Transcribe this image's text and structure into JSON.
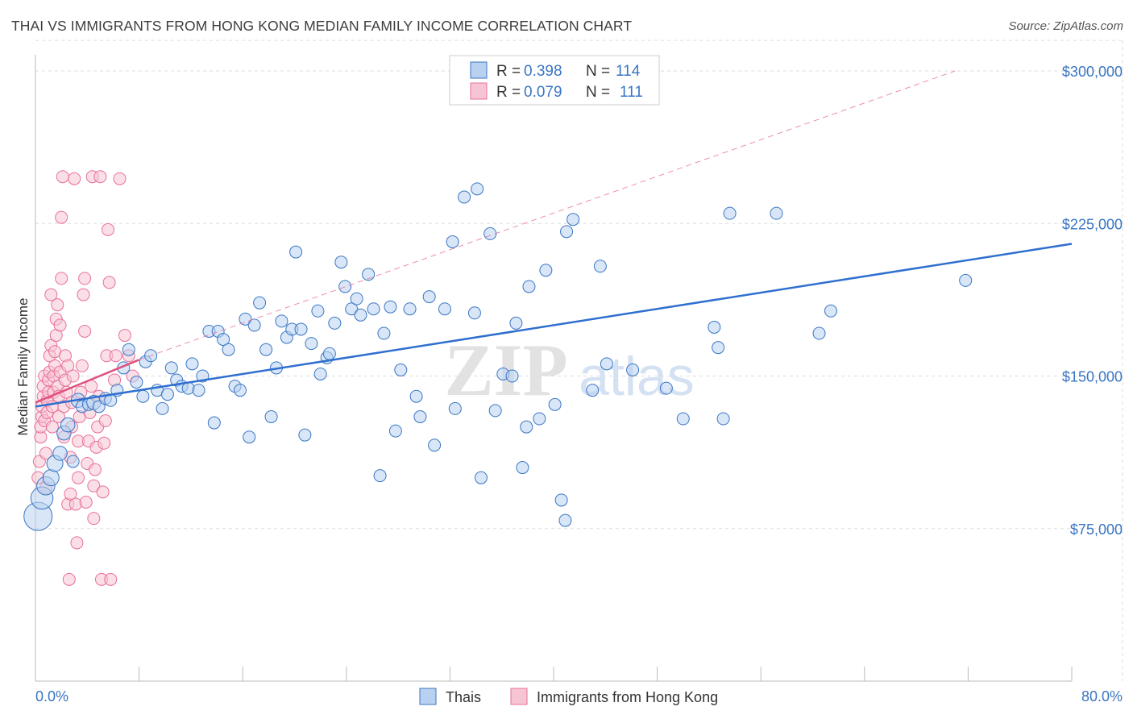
{
  "title": "THAI VS IMMIGRANTS FROM HONG KONG MEDIAN FAMILY INCOME CORRELATION CHART",
  "source": "Source: ZipAtlas.com",
  "watermark": {
    "zip": "ZIP",
    "atlas": "atlas"
  },
  "colors": {
    "blue": "#3a76c4",
    "blue_fill": "#b8d1f0",
    "blue_line": "#2f6fcf",
    "pink": "#e8709a",
    "pink_fill": "#f7c4d4",
    "pink_line": "#e0507e",
    "grid": "#dddddd"
  },
  "legend": {
    "rows": [
      {
        "r_label": "R = ",
        "r_value": "0.398",
        "n_label": "N = ",
        "n_value": "114"
      },
      {
        "r_label": "R = ",
        "r_value": "0.079",
        "n_label": "N = ",
        "n_value": "111"
      }
    ]
  },
  "bottom_legend": [
    "Thais",
    "Immigrants from Hong Kong"
  ],
  "chart_data": {
    "type": "scatter",
    "title": "THAI VS IMMIGRANTS FROM HONG KONG MEDIAN FAMILY INCOME CORRELATION CHART",
    "xlabel": "",
    "ylabel": "Median Family Income",
    "xlim": [
      0,
      80
    ],
    "ylim": [
      0,
      315000
    ],
    "x_tick_labels": [
      "0.0%",
      "80.0%"
    ],
    "y_ticks": [
      75000,
      150000,
      225000,
      300000
    ],
    "y_tick_labels": [
      "$75,000",
      "$150,000",
      "$225,000",
      "$300,000"
    ],
    "grid": true,
    "series": [
      {
        "name": "Thais",
        "r": 0.398,
        "n": 114,
        "trend": {
          "x": [
            0,
            80
          ],
          "y": [
            135000,
            215000
          ],
          "style": "solid"
        },
        "points": [
          [
            0.2,
            81000,
            14
          ],
          [
            0.5,
            90000,
            11
          ],
          [
            0.8,
            96000,
            9
          ],
          [
            1.2,
            100000,
            8
          ],
          [
            1.5,
            107000,
            8
          ],
          [
            1.9,
            112000,
            7
          ],
          [
            2.2,
            122000,
            7
          ],
          [
            2.5,
            126000,
            7
          ],
          [
            2.9,
            108000,
            6
          ],
          [
            3.3,
            138000,
            7
          ],
          [
            3.6,
            135000,
            6
          ],
          [
            4.1,
            136000,
            6
          ],
          [
            4.5,
            137000,
            7
          ],
          [
            4.9,
            135000,
            6
          ],
          [
            5.4,
            139000,
            6
          ],
          [
            5.8,
            138000,
            6
          ],
          [
            6.3,
            143000,
            6
          ],
          [
            6.8,
            154000,
            6
          ],
          [
            7.2,
            163000,
            6
          ],
          [
            7.8,
            147000,
            6
          ],
          [
            8.3,
            140000,
            6
          ],
          [
            8.5,
            157000,
            6
          ],
          [
            8.9,
            160000,
            6
          ],
          [
            9.4,
            143000,
            6
          ],
          [
            9.8,
            134000,
            6
          ],
          [
            10.2,
            141000,
            6
          ],
          [
            10.5,
            154000,
            6
          ],
          [
            10.9,
            148000,
            6
          ],
          [
            11.3,
            145000,
            6
          ],
          [
            11.8,
            144000,
            6
          ],
          [
            12.1,
            156000,
            6
          ],
          [
            12.6,
            143000,
            6
          ],
          [
            12.9,
            150000,
            6
          ],
          [
            13.4,
            172000,
            6
          ],
          [
            13.8,
            127000,
            6
          ],
          [
            14.1,
            172000,
            6
          ],
          [
            14.5,
            168000,
            6
          ],
          [
            14.9,
            163000,
            6
          ],
          [
            15.4,
            145000,
            6
          ],
          [
            15.8,
            143000,
            6
          ],
          [
            16.2,
            178000,
            6
          ],
          [
            16.5,
            120000,
            6
          ],
          [
            16.9,
            175000,
            6
          ],
          [
            17.3,
            186000,
            6
          ],
          [
            17.8,
            163000,
            6
          ],
          [
            18.2,
            130000,
            6
          ],
          [
            18.6,
            154000,
            6
          ],
          [
            19.0,
            177000,
            6
          ],
          [
            19.4,
            169000,
            6
          ],
          [
            19.8,
            173000,
            6
          ],
          [
            20.1,
            211000,
            6
          ],
          [
            20.5,
            173000,
            6
          ],
          [
            20.8,
            121000,
            6
          ],
          [
            21.3,
            166000,
            6
          ],
          [
            21.8,
            182000,
            6
          ],
          [
            22.0,
            151000,
            6
          ],
          [
            22.5,
            159000,
            6
          ],
          [
            22.7,
            161000,
            6
          ],
          [
            23.1,
            176000,
            6
          ],
          [
            23.6,
            206000,
            6
          ],
          [
            23.9,
            194000,
            6
          ],
          [
            24.4,
            183000,
            6
          ],
          [
            24.8,
            188000,
            6
          ],
          [
            25.1,
            180000,
            6
          ],
          [
            25.7,
            200000,
            6
          ],
          [
            26.1,
            183000,
            6
          ],
          [
            26.6,
            101000,
            6
          ],
          [
            26.9,
            171000,
            6
          ],
          [
            27.4,
            184000,
            6
          ],
          [
            27.8,
            123000,
            6
          ],
          [
            28.2,
            153000,
            6
          ],
          [
            28.9,
            183000,
            6
          ],
          [
            29.4,
            140000,
            6
          ],
          [
            29.7,
            130000,
            6
          ],
          [
            30.4,
            189000,
            6
          ],
          [
            30.8,
            116000,
            6
          ],
          [
            31.6,
            183000,
            6
          ],
          [
            32.2,
            216000,
            6
          ],
          [
            32.4,
            134000,
            6
          ],
          [
            33.1,
            238000,
            6
          ],
          [
            33.9,
            181000,
            6
          ],
          [
            34.1,
            242000,
            6
          ],
          [
            34.4,
            100000,
            6
          ],
          [
            35.1,
            220000,
            6
          ],
          [
            35.5,
            133000,
            6
          ],
          [
            36.1,
            151000,
            6
          ],
          [
            36.8,
            150000,
            6
          ],
          [
            37.1,
            176000,
            6
          ],
          [
            37.6,
            105000,
            6
          ],
          [
            37.9,
            125000,
            6
          ],
          [
            38.1,
            194000,
            6
          ],
          [
            38.9,
            129000,
            6
          ],
          [
            39.4,
            202000,
            6
          ],
          [
            40.1,
            136000,
            6
          ],
          [
            40.6,
            89000,
            6
          ],
          [
            40.9,
            79000,
            6
          ],
          [
            41.0,
            221000,
            6
          ],
          [
            41.5,
            227000,
            6
          ],
          [
            43.0,
            143000,
            6
          ],
          [
            43.6,
            204000,
            6
          ],
          [
            44.1,
            156000,
            6
          ],
          [
            46.1,
            153000,
            6
          ],
          [
            48.7,
            144000,
            6
          ],
          [
            50.0,
            129000,
            6
          ],
          [
            52.4,
            174000,
            6
          ],
          [
            52.7,
            164000,
            6
          ],
          [
            53.1,
            129000,
            6
          ],
          [
            53.6,
            230000,
            6
          ],
          [
            57.2,
            230000,
            6
          ],
          [
            60.5,
            171000,
            6
          ],
          [
            61.4,
            182000,
            6
          ],
          [
            71.8,
            197000,
            6
          ]
        ]
      },
      {
        "name": "Immigrants from Hong Kong",
        "r": 0.079,
        "n": 111,
        "trend": {
          "x": [
            0,
            8
          ],
          "y": [
            137000,
            158000
          ],
          "style": "solid"
        },
        "trend_extended": {
          "x": [
            8,
            71
          ],
          "y": [
            158000,
            300000
          ],
          "style": "dashed"
        },
        "points": [
          [
            0.2,
            100000,
            6
          ],
          [
            0.3,
            108000,
            6
          ],
          [
            0.4,
            120000,
            6
          ],
          [
            0.4,
            125000,
            6
          ],
          [
            0.5,
            130000,
            6
          ],
          [
            0.5,
            135000,
            6
          ],
          [
            0.6,
            140000,
            6
          ],
          [
            0.6,
            145000,
            6
          ],
          [
            0.7,
            150000,
            6
          ],
          [
            0.7,
            128000,
            6
          ],
          [
            0.8,
            95000,
            6
          ],
          [
            0.8,
            112000,
            6
          ],
          [
            0.9,
            132000,
            6
          ],
          [
            0.9,
            138000,
            6
          ],
          [
            1.0,
            142000,
            6
          ],
          [
            1.0,
            148000,
            6
          ],
          [
            1.1,
            152000,
            6
          ],
          [
            1.1,
            160000,
            6
          ],
          [
            1.2,
            165000,
            6
          ],
          [
            1.2,
            190000,
            6
          ],
          [
            1.3,
            125000,
            6
          ],
          [
            1.3,
            135000,
            6
          ],
          [
            1.4,
            142000,
            6
          ],
          [
            1.4,
            150000,
            6
          ],
          [
            1.5,
            155000,
            6
          ],
          [
            1.5,
            162000,
            6
          ],
          [
            1.6,
            170000,
            6
          ],
          [
            1.6,
            178000,
            6
          ],
          [
            1.7,
            185000,
            6
          ],
          [
            1.7,
            145000,
            6
          ],
          [
            1.8,
            130000,
            6
          ],
          [
            1.8,
            140000,
            6
          ],
          [
            1.9,
            152000,
            6
          ],
          [
            1.9,
            175000,
            6
          ],
          [
            2.0,
            198000,
            6
          ],
          [
            2.0,
            228000,
            6
          ],
          [
            2.1,
            248000,
            6
          ],
          [
            2.2,
            120000,
            6
          ],
          [
            2.2,
            135000,
            6
          ],
          [
            2.3,
            148000,
            6
          ],
          [
            2.3,
            160000,
            6
          ],
          [
            2.4,
            142000,
            6
          ],
          [
            2.5,
            155000,
            6
          ],
          [
            2.5,
            87000,
            6
          ],
          [
            2.6,
            50000,
            6
          ],
          [
            2.7,
            92000,
            6
          ],
          [
            2.7,
            110000,
            6
          ],
          [
            2.8,
            125000,
            6
          ],
          [
            2.8,
            137000,
            6
          ],
          [
            2.9,
            150000,
            6
          ],
          [
            3.0,
            247000,
            6
          ],
          [
            3.1,
            87000,
            6
          ],
          [
            3.2,
            68000,
            6
          ],
          [
            3.3,
            100000,
            6
          ],
          [
            3.3,
            118000,
            6
          ],
          [
            3.4,
            130000,
            6
          ],
          [
            3.5,
            142000,
            6
          ],
          [
            3.6,
            155000,
            6
          ],
          [
            3.7,
            190000,
            6
          ],
          [
            3.8,
            198000,
            6
          ],
          [
            3.8,
            172000,
            6
          ],
          [
            3.9,
            88000,
            6
          ],
          [
            4.0,
            107000,
            6
          ],
          [
            4.1,
            118000,
            6
          ],
          [
            4.2,
            132000,
            6
          ],
          [
            4.3,
            145000,
            6
          ],
          [
            4.4,
            248000,
            6
          ],
          [
            4.5,
            80000,
            6
          ],
          [
            4.5,
            96000,
            6
          ],
          [
            4.6,
            104000,
            6
          ],
          [
            4.7,
            115000,
            6
          ],
          [
            4.8,
            125000,
            6
          ],
          [
            4.9,
            140000,
            6
          ],
          [
            5.0,
            248000,
            6
          ],
          [
            5.1,
            50000,
            6
          ],
          [
            5.2,
            93000,
            6
          ],
          [
            5.3,
            117000,
            6
          ],
          [
            5.4,
            128000,
            6
          ],
          [
            5.5,
            160000,
            6
          ],
          [
            5.6,
            222000,
            6
          ],
          [
            5.7,
            196000,
            6
          ],
          [
            5.8,
            50000,
            6
          ],
          [
            6.1,
            148000,
            6
          ],
          [
            6.2,
            160000,
            6
          ],
          [
            6.5,
            247000,
            6
          ],
          [
            6.9,
            170000,
            6
          ],
          [
            7.2,
            160000,
            6
          ],
          [
            7.5,
            150000,
            6
          ]
        ]
      }
    ]
  }
}
